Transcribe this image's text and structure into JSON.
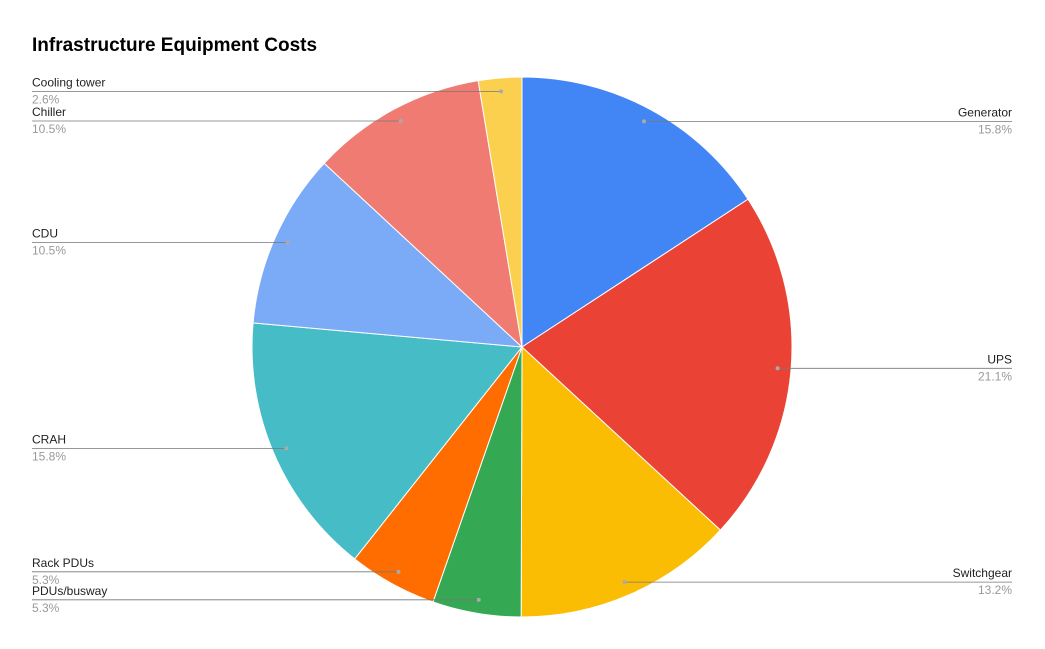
{
  "chart_data": {
    "type": "pie",
    "title": "Infrastructure Equipment Costs",
    "categories": [
      "Generator",
      "UPS",
      "Switchgear",
      "PDUs/busway",
      "Rack PDUs",
      "CRAH",
      "CDU",
      "Chiller",
      "Cooling tower"
    ],
    "values": [
      15.8,
      21.1,
      13.2,
      5.3,
      5.3,
      15.8,
      10.5,
      10.5,
      2.6
    ],
    "value_labels": [
      "15.8%",
      "21.1%",
      "13.2%",
      "5.3%",
      "5.3%",
      "15.8%",
      "10.5%",
      "10.5%",
      "2.6%"
    ],
    "colors": [
      "#4285f4",
      "#ea4335",
      "#fbbc04",
      "#34a853",
      "#ff6d01",
      "#46bdc6",
      "#7baaf7",
      "#f07b72",
      "#fcd04f"
    ]
  }
}
